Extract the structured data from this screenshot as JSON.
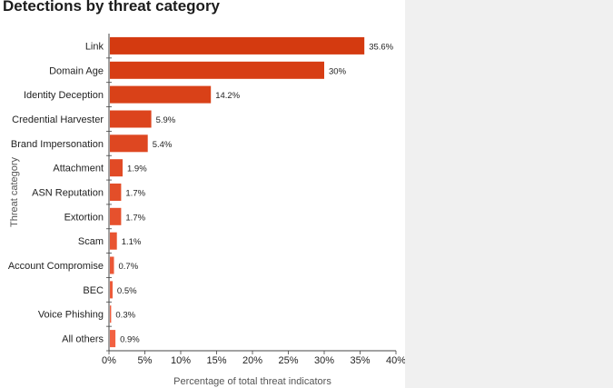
{
  "chart_data": {
    "type": "bar",
    "orientation": "horizontal",
    "title": "Detections by threat category",
    "xlabel": "Percentage of total threat indicators",
    "ylabel": "Threat category",
    "xlim": [
      0,
      40
    ],
    "xticks": [
      "0%",
      "5%",
      "10%",
      "15%",
      "20%",
      "25%",
      "30%",
      "35%",
      "40%"
    ],
    "categories": [
      "Link",
      "Domain Age",
      "Identity Deception",
      "Credential Harvester",
      "Brand Impersonation",
      "Attachment",
      "ASN Reputation",
      "Extortion",
      "Scam",
      "Account Compromise",
      "BEC",
      "Voice Phishing",
      "All others"
    ],
    "values": [
      35.6,
      30,
      14.2,
      5.9,
      5.4,
      1.9,
      1.7,
      1.7,
      1.1,
      0.7,
      0.5,
      0.3,
      0.9
    ],
    "value_labels": [
      "35.6%",
      "30%",
      "14.2%",
      "5.9%",
      "5.4%",
      "1.9%",
      "1.7%",
      "1.7%",
      "1.1%",
      "0.7%",
      "0.5%",
      "0.3%",
      "0.9%"
    ],
    "grid": false,
    "colors": {
      "bar_darkest": "#d43a10",
      "bar_lightest": "#f26142",
      "axis": "#444444"
    }
  }
}
